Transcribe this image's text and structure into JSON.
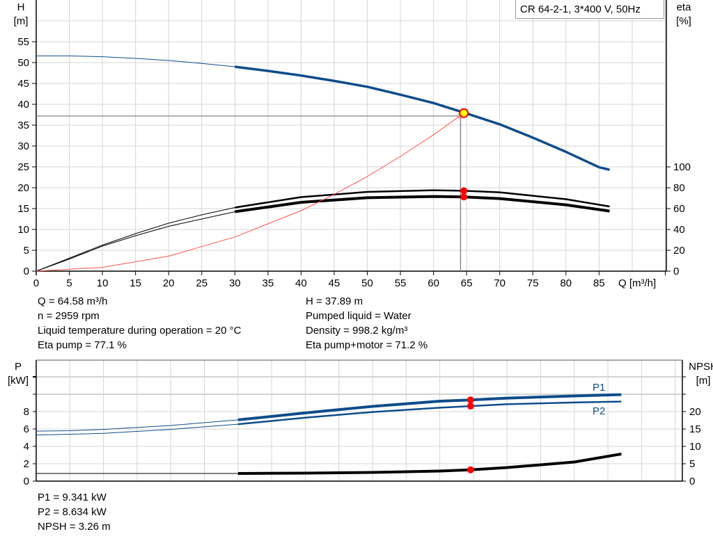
{
  "title": "CR 64-2-1, 3*400 V, 50Hz",
  "chart_data": [
    {
      "type": "line",
      "xlabel": "Q [m³/h]",
      "ylabel_left": [
        "H",
        "[m]"
      ],
      "ylabel_right": [
        "eta",
        "[%]"
      ],
      "xlim": [
        0,
        95
      ],
      "ylim_left": [
        0,
        65
      ],
      "ylim_right_ticks": [
        0,
        20,
        40,
        60,
        80,
        100
      ],
      "x_ticks": [
        0,
        5,
        10,
        15,
        20,
        25,
        30,
        35,
        40,
        45,
        50,
        55,
        60,
        65,
        70,
        75,
        80,
        85
      ],
      "y_ticks_left": [
        0,
        5,
        10,
        15,
        20,
        25,
        30,
        35,
        40,
        45,
        50,
        55
      ],
      "grid": true,
      "series": [
        {
          "key": "H",
          "axis": "H",
          "color": "#0e4c8a",
          "thin_until": 30,
          "x": [
            0,
            5,
            10,
            15,
            20,
            25,
            30,
            35,
            40,
            45,
            50,
            55,
            60,
            65,
            70,
            75,
            80,
            85,
            86.6
          ],
          "y": [
            51.6,
            51.6,
            51.4,
            51,
            50.5,
            49.8,
            49,
            48,
            46.9,
            45.6,
            44.2,
            42.3,
            40.3,
            37.8,
            35.2,
            32,
            28.6,
            24.9,
            24.3
          ]
        },
        {
          "key": "eta_pump",
          "axis": "eta",
          "color": "#000000",
          "thin_until": 30,
          "x": [
            0,
            5,
            10,
            15,
            20,
            25,
            30,
            40,
            50,
            60,
            64.58,
            70,
            80,
            86.6
          ],
          "y": [
            0,
            12.4,
            25,
            36,
            46,
            54,
            61,
            71,
            76,
            77.6,
            77.1,
            75.6,
            69,
            62
          ]
        },
        {
          "key": "eta_pump_motor",
          "axis": "eta",
          "color": "#000000",
          "thin_until": 30,
          "x": [
            0,
            5,
            10,
            15,
            20,
            25,
            30,
            40,
            50,
            60,
            64.58,
            70,
            80,
            86.6
          ],
          "y": [
            0,
            11.6,
            24,
            34,
            43,
            50,
            57,
            66,
            70.4,
            71.6,
            71.2,
            69.6,
            63.6,
            57.6
          ]
        },
        {
          "key": "system",
          "axis": "H",
          "color": "#ff5050",
          "x": [
            0,
            10,
            20,
            30,
            40,
            45,
            50,
            55,
            60,
            64.58
          ],
          "y": [
            0,
            0.9,
            3.6,
            8.2,
            14.5,
            18.4,
            22.7,
            27.5,
            32.7,
            37.89
          ]
        }
      ],
      "duty_point": {
        "Q": 64.58,
        "H": 37.89,
        "eta_pump": 77.1,
        "eta_pump_motor": 71.2
      }
    },
    {
      "type": "line",
      "ylabel_left": [
        "P",
        "[kW]"
      ],
      "ylabel_right": [
        "NPSH",
        "[m]"
      ],
      "xlim": [
        0,
        95
      ],
      "ylim_left": [
        0,
        14
      ],
      "y_ticks_left": [
        0,
        2,
        4,
        6,
        8
      ],
      "y_ticks_right": [
        0,
        5,
        10,
        15,
        20
      ],
      "grid": true,
      "series": [
        {
          "key": "P1",
          "name": "P1",
          "axis": "P",
          "color": "#0e4c8a",
          "thin_until": 30,
          "x": [
            0,
            5,
            10,
            20,
            30,
            40,
            50,
            60,
            64.58,
            70,
            80,
            87
          ],
          "y": [
            5.75,
            5.8,
            5.95,
            6.4,
            7.05,
            7.85,
            8.6,
            9.2,
            9.341,
            9.55,
            9.8,
            9.95
          ]
        },
        {
          "key": "P2",
          "name": "P2",
          "axis": "P",
          "color": "#0e4c8a",
          "thin_until": 30,
          "x": [
            0,
            10,
            20,
            30,
            40,
            50,
            60,
            64.58,
            70,
            80,
            87
          ],
          "y": [
            5.3,
            5.5,
            5.95,
            6.55,
            7.3,
            7.95,
            8.45,
            8.634,
            8.85,
            9.05,
            9.15
          ]
        },
        {
          "key": "NPSH",
          "axis": "NPSH",
          "color": "#000000",
          "thin_until": 30,
          "x": [
            0,
            30,
            40,
            50,
            60,
            64.58,
            70,
            80,
            87
          ],
          "y": [
            2.2,
            2.2,
            2.3,
            2.5,
            2.9,
            3.26,
            3.9,
            5.5,
            7.8
          ]
        }
      ],
      "duty_point": {
        "Q": 64.58,
        "P1": 9.341,
        "P2": 8.634,
        "NPSH": 3.26
      }
    }
  ],
  "info_top_left": [
    "Q = 64.58 m³/h",
    "n = 2959 rpm",
    "Liquid temperature during operation = 20 °C",
    "Eta pump = 77.1 %"
  ],
  "info_top_right": [
    "H = 37.89 m",
    "Pumped liquid = Water",
    "Density = 998.2 kg/m³",
    "Eta pump+motor = 71.2 %"
  ],
  "info_bottom": [
    "P1 = 9.341 kW",
    "P2 = 8.634 kW",
    "NPSH = 3.26 m"
  ]
}
